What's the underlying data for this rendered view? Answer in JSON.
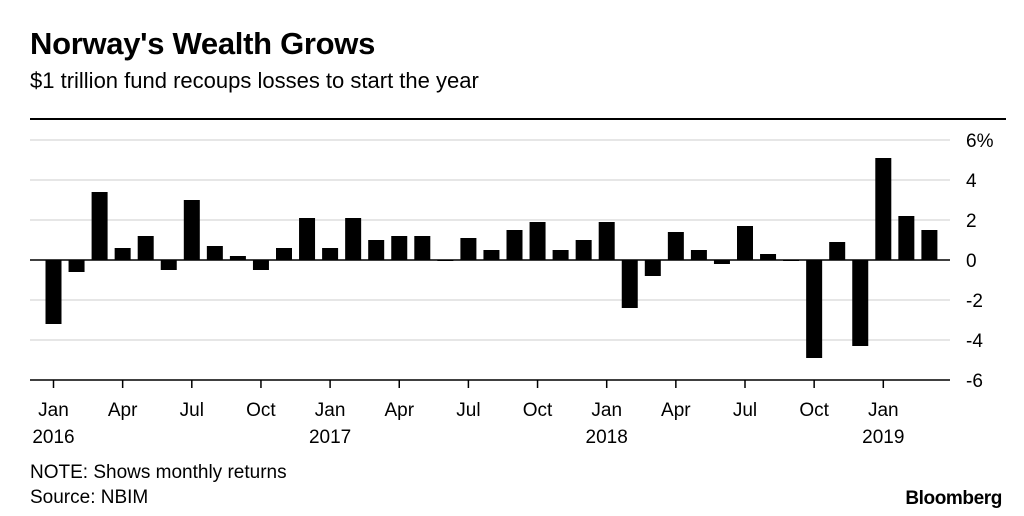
{
  "header": {
    "title": "Norway's Wealth Grows",
    "subtitle": "$1 trillion fund recoups losses to start the year"
  },
  "footer": {
    "note": "NOTE: Shows monthly returns",
    "source": "Source: NBIM",
    "brand": "Bloomberg"
  },
  "colors": {
    "bar": "#000000",
    "grid": "#dddddd",
    "axis": "#000000"
  },
  "chart_data": {
    "type": "bar",
    "x": [
      "2016-01",
      "2016-02",
      "2016-03",
      "2016-04",
      "2016-05",
      "2016-06",
      "2016-07",
      "2016-08",
      "2016-09",
      "2016-10",
      "2016-11",
      "2016-12",
      "2017-01",
      "2017-02",
      "2017-03",
      "2017-04",
      "2017-05",
      "2017-06",
      "2017-07",
      "2017-08",
      "2017-09",
      "2017-10",
      "2017-11",
      "2017-12",
      "2018-01",
      "2018-02",
      "2018-03",
      "2018-04",
      "2018-05",
      "2018-06",
      "2018-07",
      "2018-08",
      "2018-09",
      "2018-10",
      "2018-11",
      "2018-12",
      "2019-01",
      "2019-02",
      "2019-03"
    ],
    "values": [
      -3.2,
      -0.6,
      3.4,
      0.6,
      1.2,
      -0.5,
      3.0,
      0.7,
      0.2,
      -0.5,
      0.6,
      2.1,
      0.6,
      2.1,
      1.0,
      1.2,
      1.2,
      0.0,
      1.1,
      0.5,
      1.5,
      1.9,
      0.5,
      1.0,
      1.9,
      -2.4,
      -0.8,
      1.4,
      0.5,
      -0.2,
      1.7,
      0.3,
      0.0,
      -4.9,
      0.9,
      -4.3,
      5.1,
      2.2,
      1.5
    ],
    "ylim": [
      -6,
      6
    ],
    "yticks": [
      6,
      4,
      2,
      0,
      -2,
      -4,
      -6
    ],
    "ytick_labels": [
      "6%",
      "4",
      "2",
      "0",
      "-2",
      "-4",
      "-6"
    ],
    "xticks": [
      {
        "index": 0,
        "label": "Jan",
        "year": "2016"
      },
      {
        "index": 3,
        "label": "Apr",
        "year": ""
      },
      {
        "index": 6,
        "label": "Jul",
        "year": ""
      },
      {
        "index": 9,
        "label": "Oct",
        "year": ""
      },
      {
        "index": 12,
        "label": "Jan",
        "year": "2017"
      },
      {
        "index": 15,
        "label": "Apr",
        "year": ""
      },
      {
        "index": 18,
        "label": "Jul",
        "year": ""
      },
      {
        "index": 21,
        "label": "Oct",
        "year": ""
      },
      {
        "index": 24,
        "label": "Jan",
        "year": "2018"
      },
      {
        "index": 27,
        "label": "Apr",
        "year": ""
      },
      {
        "index": 30,
        "label": "Jul",
        "year": ""
      },
      {
        "index": 33,
        "label": "Oct",
        "year": ""
      },
      {
        "index": 36,
        "label": "Jan",
        "year": "2019"
      }
    ],
    "grid": true,
    "yaxis_position": "right"
  }
}
